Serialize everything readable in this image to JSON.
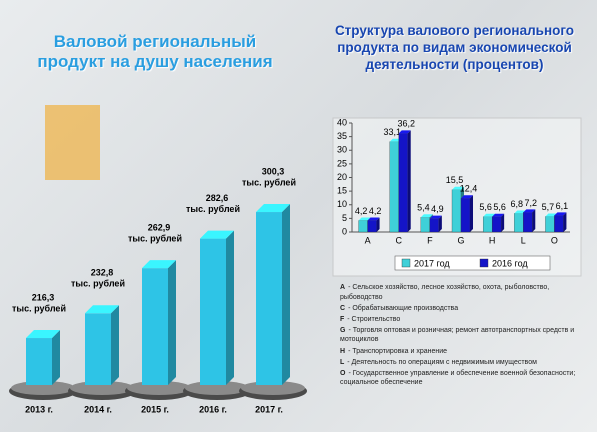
{
  "chart_data": [
    {
      "type": "bar3d",
      "title": "Валовой региональный продукт на душу населения",
      "categories": [
        "2013 г.",
        "2014 г.",
        "2015 г.",
        "2016 г.",
        "2017 г."
      ],
      "values": [
        216.3,
        232.8,
        262.9,
        282.6,
        300.3
      ],
      "value_labels": [
        "216,3",
        "232,8",
        "262,9",
        "282,6",
        "300,3"
      ],
      "value_unit": "тыс. рублей",
      "color": "#2ec4e6",
      "ylim": [
        185,
        305
      ]
    },
    {
      "type": "grouped_bar",
      "title": "Структура валового регионального продукта по видам экономической деятельности (процентов)",
      "categories": [
        "A",
        "C",
        "F",
        "G",
        "H",
        "L",
        "O"
      ],
      "series": [
        {
          "name": "2017 год",
          "color": "#3fd0d8",
          "values": [
            4.2,
            33.1,
            5.4,
            15.5,
            5.6,
            6.8,
            5.7
          ],
          "value_labels": [
            "4,2",
            "33,1",
            "5,4",
            "15,5",
            "5,6",
            "6,8",
            "5,7"
          ]
        },
        {
          "name": "2016 год",
          "color": "#1414c8",
          "values": [
            4.2,
            36.2,
            4.9,
            12.4,
            5.6,
            7.2,
            6.1
          ],
          "value_labels": [
            "4,2",
            "36,2",
            "4,9",
            "12,4",
            "5,6",
            "7,2",
            "6,1"
          ]
        }
      ],
      "ylim": [
        0,
        40
      ],
      "yticks": [
        0,
        5,
        10,
        15,
        20,
        25,
        30,
        35,
        40
      ],
      "legend": "bottom",
      "notes": [
        {
          "code": "A",
          "text": "- Сельское хозяйство, лесное хозяйство, охота, рыболовство, рыбоводство"
        },
        {
          "code": "C",
          "text": "- Обрабатывающие производства"
        },
        {
          "code": "F",
          "text": "- Строительство"
        },
        {
          "code": "G",
          "text": "- Торговля оптовая и розничная; ремонт автотранспортных средств и мотоциклов"
        },
        {
          "code": "H",
          "text": "- Транспортировка и хранение"
        },
        {
          "code": "L",
          "text": "- Деятельность по операциям с недвижимым имуществом"
        },
        {
          "code": "O",
          "text": "- Государственное управление и обеспечение военной безопасности; социальное обеспечение"
        }
      ]
    }
  ]
}
